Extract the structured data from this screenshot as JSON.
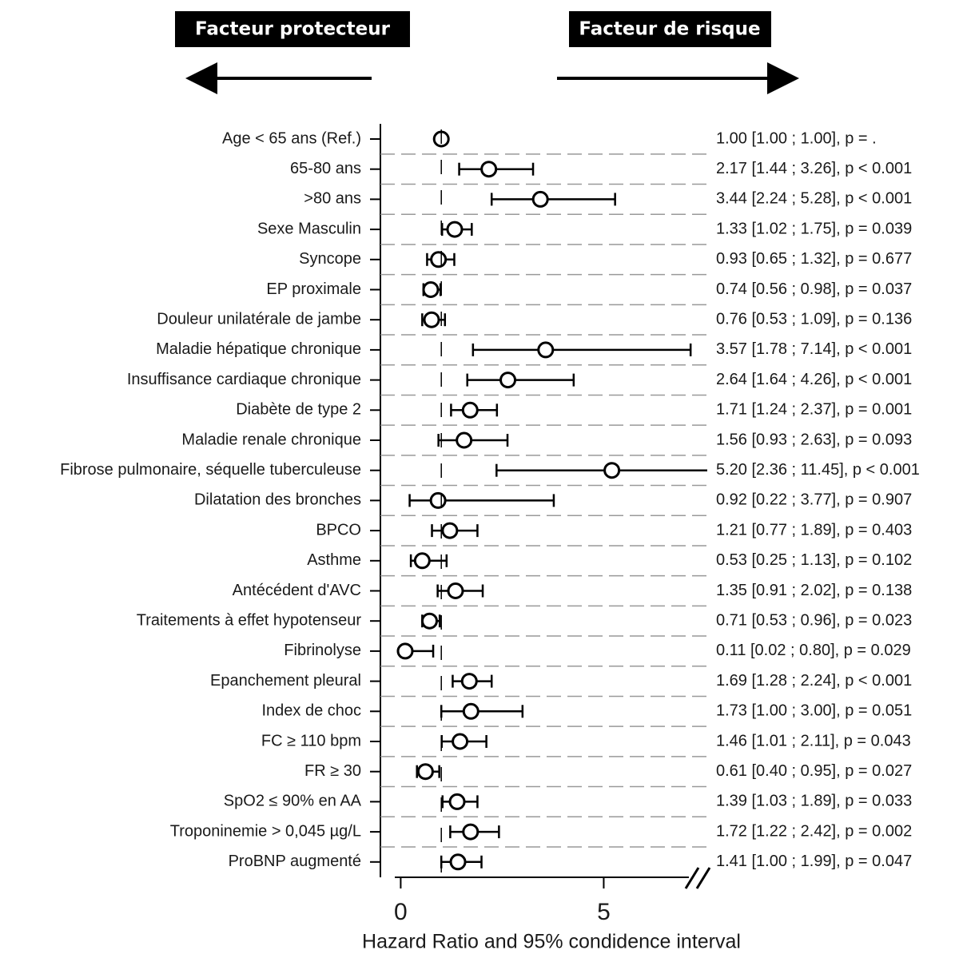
{
  "chart_data": {
    "type": "forest",
    "header_left": "Facteur protecteur",
    "header_right": "Facteur de risque",
    "xlabel": "Hazard Ratio and 95% condidence interval",
    "xlim": [
      -0.5,
      7.55
    ],
    "xticks": [
      0,
      5
    ],
    "ref_line": 1,
    "grid": true,
    "color": "#000000",
    "categories": [
      "Age < 65 ans (Ref.)",
      "65-80 ans",
      ">80 ans",
      "Sexe Masculin",
      "Syncope",
      "EP proximale",
      "Douleur unilatérale de jambe",
      "Maladie hépatique chronique",
      "Insuffisance cardiaque chronique",
      "Diabète de type 2",
      "Maladie renale chronique",
      "Fibrose pulmonaire, séquelle tuberculeuse",
      "Dilatation des bronches",
      "BPCO",
      "Asthme",
      "Antécédent d'AVC",
      "Traitements à effet hypotenseur",
      "Fibrinolyse",
      "Epanchement pleural",
      "Index de choc",
      "FC ≥ 110 bpm",
      "FR ≥ 30",
      "SpO2 ≤ 90% en AA",
      "Troponinemie > 0,045 µg/L",
      "ProBNP augmenté"
    ],
    "values": [
      1.0,
      2.17,
      3.44,
      1.33,
      0.93,
      0.74,
      0.76,
      3.57,
      2.64,
      1.71,
      1.56,
      5.2,
      0.92,
      1.21,
      0.53,
      1.35,
      0.71,
      0.11,
      1.69,
      1.73,
      1.46,
      0.61,
      1.39,
      1.72,
      1.41
    ],
    "lower": [
      1.0,
      1.44,
      2.24,
      1.02,
      0.65,
      0.56,
      0.53,
      1.78,
      1.64,
      1.24,
      0.93,
      2.36,
      0.22,
      0.77,
      0.25,
      0.91,
      0.53,
      0.02,
      1.28,
      1.0,
      1.01,
      0.4,
      1.03,
      1.22,
      1.0
    ],
    "upper": [
      1.0,
      3.26,
      5.28,
      1.75,
      1.32,
      0.98,
      1.09,
      7.14,
      4.26,
      2.37,
      2.63,
      11.45,
      3.77,
      1.89,
      1.13,
      2.02,
      0.96,
      0.8,
      2.24,
      3.0,
      2.11,
      0.95,
      1.89,
      2.42,
      1.99
    ],
    "value_labels": [
      "1.00 [1.00 ; 1.00], p = .",
      "2.17 [1.44 ; 3.26], p < 0.001",
      "3.44 [2.24 ; 5.28], p < 0.001",
      "1.33 [1.02 ; 1.75], p = 0.039",
      "0.93 [0.65 ; 1.32], p = 0.677",
      "0.74 [0.56 ; 0.98], p = 0.037",
      "0.76 [0.53 ; 1.09], p = 0.136",
      "3.57 [1.78 ; 7.14], p < 0.001",
      "2.64 [1.64 ; 4.26], p < 0.001",
      "1.71 [1.24 ; 2.37], p = 0.001",
      "1.56 [0.93 ; 2.63], p = 0.093",
      "5.20 [2.36 ; 11.45], p < 0.001",
      "0.92 [0.22 ; 3.77], p = 0.907",
      "1.21 [0.77 ; 1.89], p = 0.403",
      "0.53 [0.25 ; 1.13], p = 0.102",
      "1.35 [0.91 ; 2.02], p = 0.138",
      "0.71 [0.53 ; 0.96], p = 0.023",
      "0.11 [0.02 ; 0.80], p = 0.029",
      "1.69 [1.28 ; 2.24], p < 0.001",
      "1.73 [1.00 ; 3.00], p = 0.051",
      "1.46 [1.01 ; 2.11], p = 0.043",
      "0.61 [0.40 ; 0.95], p = 0.027",
      "1.39 [1.03 ; 1.89], p = 0.033",
      "1.72 [1.22 ; 2.42], p = 0.002",
      "1.41 [1.00 ; 1.99], p = 0.047"
    ]
  }
}
